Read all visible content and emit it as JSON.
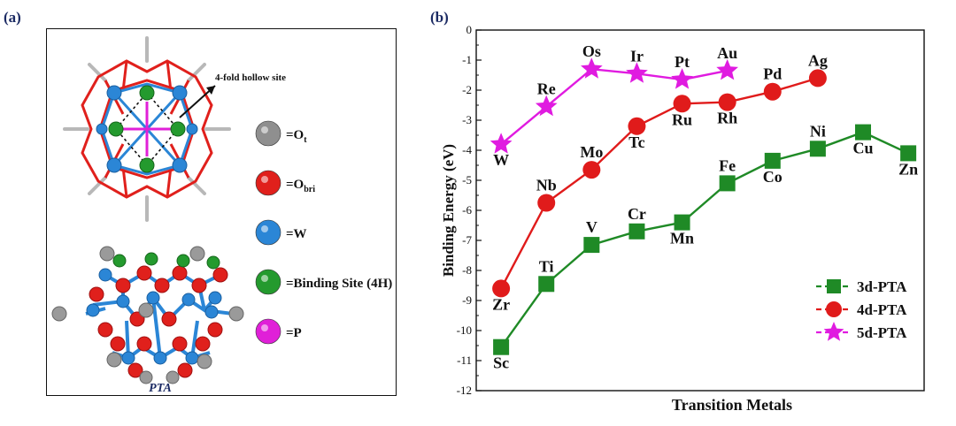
{
  "panel_a": {
    "tag": "(a)",
    "annotation": "4-fold hollow site",
    "caption": "PTA",
    "legend": [
      {
        "key": "ot",
        "color": "#8f8f8f",
        "label": "=O",
        "sub": "t"
      },
      {
        "key": "obri",
        "color": "#e0201c",
        "label": "=O",
        "sub": "bri"
      },
      {
        "key": "w",
        "color": "#2b86d6",
        "label": "=W",
        "sub": ""
      },
      {
        "key": "bs",
        "color": "#249a2e",
        "label": "=Binding Site (4H)",
        "sub": ""
      },
      {
        "key": "p",
        "color": "#e020d8",
        "label": "=P",
        "sub": ""
      }
    ]
  },
  "panel_b": {
    "tag": "(b)"
  },
  "chart_data": {
    "type": "line",
    "xlabel": "Transition Metals",
    "ylabel": "Binding Energy (eV)",
    "ylim": [
      -12,
      0
    ],
    "yticks": [
      0,
      -1,
      -2,
      -3,
      -4,
      -5,
      -6,
      -7,
      -8,
      -9,
      -10,
      -11,
      -12
    ],
    "xticks_shown": false,
    "grid": false,
    "legend_position": "bottom-right",
    "series": [
      {
        "name": "3d-PTA",
        "color": "#1f8a26",
        "marker": "square",
        "points": [
          {
            "label": "Sc",
            "x": 1,
            "y": -10.55
          },
          {
            "label": "Ti",
            "x": 2,
            "y": -8.45
          },
          {
            "label": "V",
            "x": 3,
            "y": -7.15
          },
          {
            "label": "Cr",
            "x": 4,
            "y": -6.7
          },
          {
            "label": "Mn",
            "x": 5,
            "y": -6.4
          },
          {
            "label": "Fe",
            "x": 6,
            "y": -5.1
          },
          {
            "label": "Co",
            "x": 7,
            "y": -4.35
          },
          {
            "label": "Ni",
            "x": 8,
            "y": -3.95
          },
          {
            "label": "Cu",
            "x": 9,
            "y": -3.4
          },
          {
            "label": "Zn",
            "x": 10,
            "y": -4.1
          }
        ]
      },
      {
        "name": "4d-PTA",
        "color": "#e01b1b",
        "marker": "circle",
        "points": [
          {
            "label": "Zr",
            "x": 1,
            "y": -8.6
          },
          {
            "label": "Nb",
            "x": 2,
            "y": -5.75
          },
          {
            "label": "Mo",
            "x": 3,
            "y": -4.65
          },
          {
            "label": "Tc",
            "x": 4,
            "y": -3.2
          },
          {
            "label": "Ru",
            "x": 5,
            "y": -2.45
          },
          {
            "label": "Rh",
            "x": 6,
            "y": -2.4
          },
          {
            "label": "Pd",
            "x": 7,
            "y": -2.05
          },
          {
            "label": "Ag",
            "x": 8,
            "y": -1.6
          }
        ]
      },
      {
        "name": "5d-PTA",
        "color": "#e01be0",
        "marker": "star",
        "points": [
          {
            "label": "W",
            "x": 1,
            "y": -3.8
          },
          {
            "label": "Re",
            "x": 2,
            "y": -2.55
          },
          {
            "label": "Os",
            "x": 3,
            "y": -1.3
          },
          {
            "label": "Ir",
            "x": 4,
            "y": -1.45
          },
          {
            "label": "Pt",
            "x": 5,
            "y": -1.65
          },
          {
            "label": "Au",
            "x": 6,
            "y": -1.35
          }
        ]
      }
    ]
  }
}
